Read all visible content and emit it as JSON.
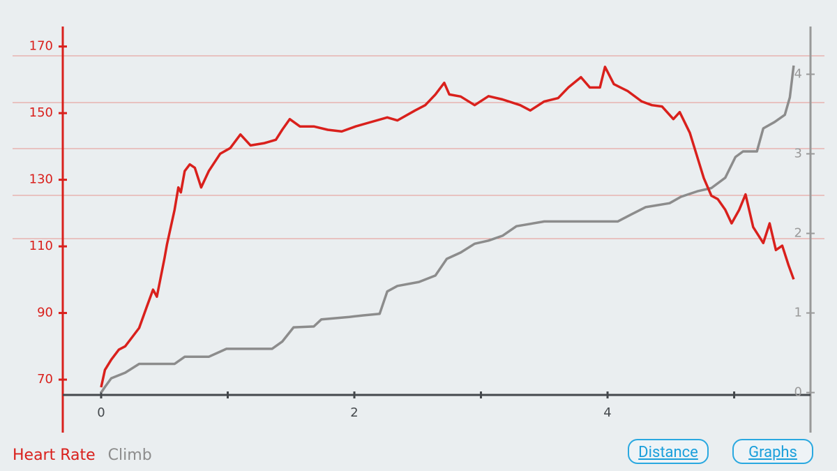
{
  "chart_data": {
    "type": "line",
    "xlim": [
      -0.303,
      5.603
    ],
    "xticks": [
      0,
      2,
      4
    ],
    "xminor_ticks": [
      1,
      3,
      5
    ],
    "ylim": [
      65.4,
      176
    ],
    "yticks": [
      70,
      90,
      110,
      130,
      150,
      170
    ],
    "y2lim": [
      -0.03,
      4.6
    ],
    "y2ticks": [
      0,
      1,
      2,
      3,
      4
    ],
    "axis_color": "#d9201c",
    "y2_axis_color": "#999999",
    "series": [
      {
        "name": "Heart Rate",
        "color": "#d9201c",
        "axis": "y",
        "x": [
          0,
          0.03,
          0.08,
          0.14,
          0.19,
          0.25,
          0.3,
          0.36,
          0.41,
          0.44,
          0.5,
          0.52,
          0.58,
          0.61,
          0.63,
          0.66,
          0.7,
          0.74,
          0.79,
          0.85,
          0.94,
          1.02,
          1.1,
          1.18,
          1.29,
          1.38,
          1.43,
          1.49,
          1.57,
          1.68,
          1.79,
          1.9,
          2.01,
          2.12,
          2.26,
          2.34,
          2.48,
          2.56,
          2.64,
          2.71,
          2.75,
          2.84,
          2.95,
          3.06,
          3.17,
          3.31,
          3.39,
          3.5,
          3.61,
          3.69,
          3.79,
          3.86,
          3.94,
          3.98,
          4.05,
          4.16,
          4.27,
          4.35,
          4.43,
          4.52,
          4.57,
          4.65,
          4.71,
          4.76,
          4.82,
          4.87,
          4.93,
          4.98,
          5.04,
          5.09,
          5.15,
          5.23,
          5.28,
          5.33,
          5.38,
          5.43,
          5.47
        ],
        "values": [
          67.7,
          72.9,
          76,
          79,
          80,
          83,
          85.5,
          91.8,
          97,
          94.9,
          106.4,
          110.6,
          121,
          127.7,
          126.2,
          132.6,
          134.6,
          133.6,
          127.7,
          132.6,
          137.8,
          139.5,
          143.6,
          140.3,
          141,
          142,
          145,
          148.2,
          146,
          146,
          145,
          144.5,
          146,
          147.2,
          148.7,
          147.8,
          150.8,
          152.4,
          155.6,
          159.1,
          155.6,
          155,
          152.4,
          155.1,
          154.1,
          152.4,
          150.8,
          153.5,
          154.5,
          157.7,
          160.8,
          157.7,
          157.7,
          163.9,
          158.7,
          156.6,
          153.5,
          152.4,
          152,
          148.2,
          150.3,
          144.1,
          136.7,
          130.5,
          125.2,
          124.2,
          121,
          116.9,
          121,
          125.6,
          115.8,
          111,
          116.9,
          108.9,
          110.2,
          104.3,
          100.1
        ]
      },
      {
        "name": "Climb",
        "color": "#8c8c8c",
        "axis": "y2",
        "x": [
          0,
          0.03,
          0.08,
          0.19,
          0.3,
          0.58,
          0.66,
          0.85,
          0.99,
          1.35,
          1.43,
          1.52,
          1.68,
          1.74,
          1.96,
          2.07,
          2.2,
          2.26,
          2.34,
          2.51,
          2.64,
          2.73,
          2.84,
          2.95,
          3.06,
          3.17,
          3.28,
          3.5,
          4.08,
          4.19,
          4.3,
          4.49,
          4.58,
          4.71,
          4.82,
          4.93,
          5.01,
          5.07,
          5.18,
          5.23,
          5.32,
          5.4,
          5.44,
          5.47
        ],
        "values": [
          0,
          0.07,
          0.18,
          0.25,
          0.36,
          0.36,
          0.45,
          0.45,
          0.55,
          0.55,
          0.64,
          0.82,
          0.83,
          0.92,
          0.95,
          0.97,
          0.99,
          1.27,
          1.34,
          1.39,
          1.47,
          1.68,
          1.76,
          1.87,
          1.91,
          1.97,
          2.09,
          2.15,
          2.15,
          2.24,
          2.33,
          2.38,
          2.46,
          2.53,
          2.57,
          2.7,
          2.96,
          3.03,
          3.03,
          3.32,
          3.4,
          3.49,
          3.71,
          4.11
        ]
      }
    ]
  },
  "buttons": [
    "Distance",
    "Graphs"
  ]
}
